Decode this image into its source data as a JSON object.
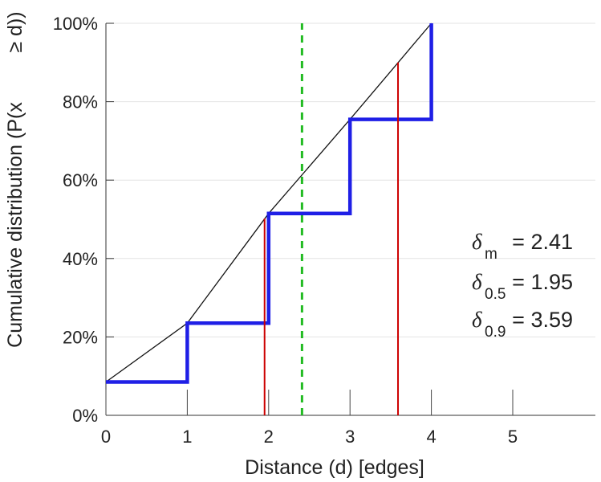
{
  "chart_data": {
    "type": "line",
    "xlabel": "Distance (d) [edges]",
    "ylabel_parts": [
      "Cumulative distribution (P(x",
      "≥ d))"
    ],
    "xlim": [
      0,
      6
    ],
    "ylim": [
      0,
      100
    ],
    "x_ticks": [
      "0",
      "1",
      "2",
      "3",
      "4",
      "5"
    ],
    "y_ticks": [
      "0%",
      "20%",
      "40%",
      "60%",
      "80%",
      "100%"
    ],
    "grid": "horizontal",
    "series": [
      {
        "style": "step",
        "color": "#1f1fe6",
        "points": [
          [
            0,
            8.5
          ],
          [
            1,
            8.5
          ],
          [
            1,
            23.5
          ],
          [
            2,
            23.5
          ],
          [
            2,
            51.5
          ],
          [
            3,
            51.5
          ],
          [
            3,
            75.5
          ],
          [
            4,
            75.5
          ],
          [
            4,
            100
          ]
        ]
      },
      {
        "style": "line",
        "color": "#111111",
        "points": [
          [
            0,
            8.5
          ],
          [
            1,
            23.5
          ],
          [
            2,
            51.5
          ],
          [
            3,
            75.5
          ],
          [
            4,
            100
          ]
        ]
      }
    ],
    "vlines": [
      {
        "x": 1.95,
        "top": 50.2,
        "color": "#cc0000",
        "style": "solid"
      },
      {
        "x": 3.59,
        "top": 90.0,
        "color": "#cc0000",
        "style": "solid"
      },
      {
        "x": 2.41,
        "top": 100,
        "color": "#22bb22",
        "style": "dashed"
      }
    ],
    "annotations": [
      {
        "symbol": "δ",
        "sub": "m",
        "text": "= 2.41"
      },
      {
        "symbol": "δ",
        "sub": "0.5",
        "text": "= 1.95"
      },
      {
        "symbol": "δ",
        "sub": "0.9",
        "text": "= 3.59"
      }
    ]
  }
}
